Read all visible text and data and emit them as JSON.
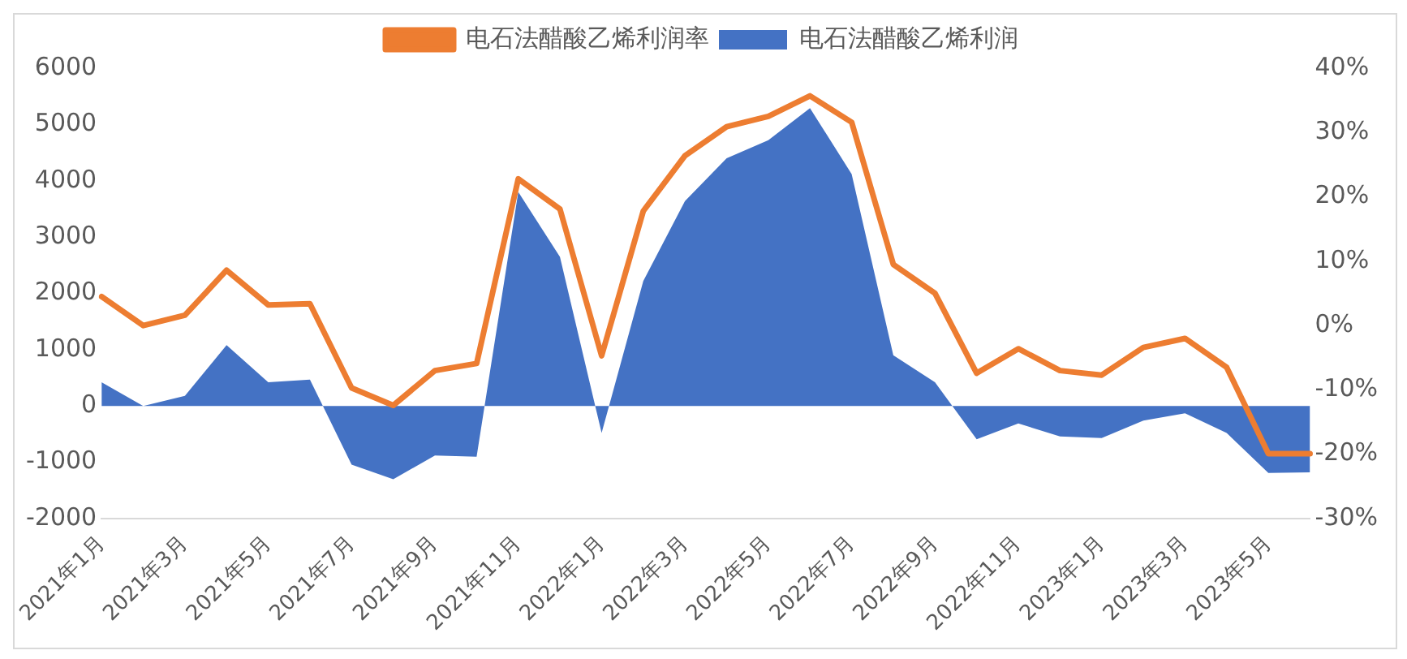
{
  "chart_data": {
    "type": "area",
    "categories": [
      "2021年1月",
      null,
      "2021年3月",
      null,
      "2021年5月",
      null,
      "2021年7月",
      null,
      "2021年9月",
      null,
      "2021年11月",
      null,
      "2022年1月",
      null,
      "2022年3月",
      null,
      "2022年5月",
      null,
      "2022年7月",
      null,
      "2022年9月",
      null,
      "2022年11月",
      null,
      "2023年1月",
      null,
      "2023年3月",
      null,
      "2023年5月",
      null
    ],
    "series": [
      {
        "name": "电石法醋酸乙烯利润",
        "color": "#4472c4",
        "values": [
          420,
          0,
          180,
          1080,
          420,
          470,
          -1040,
          -1300,
          -880,
          -900,
          3800,
          2650,
          -480,
          2220,
          3640,
          4400,
          4720,
          5290,
          4120,
          900,
          420,
          -590,
          -310,
          -540,
          -570,
          -260,
          -130,
          -480,
          -1190,
          -1180
        ]
      },
      {
        "name": "电石法醋酸乙烯利润率",
        "type": "line",
        "axis": "y2",
        "color": "#ed7d31",
        "values": [
          4.5,
          0,
          1.6,
          8.6,
          3.2,
          3.4,
          -9.7,
          -12.4,
          -7.0,
          -5.9,
          22.8,
          18.1,
          -4.7,
          17.8,
          26.4,
          30.9,
          32.5,
          35.7,
          31.6,
          9.5,
          5.0,
          -7.4,
          -3.6,
          -7.0,
          -7.7,
          -3.4,
          -2.0,
          -6.5,
          -19.9,
          -19.9
        ]
      }
    ],
    "ylim": [
      -2000,
      6000
    ],
    "yticks": [
      -2000,
      -1000,
      0,
      1000,
      2000,
      3000,
      4000,
      5000,
      6000
    ],
    "y2lim": [
      -30,
      40
    ],
    "y2ticks": [
      {
        "value": -30,
        "label": "-30%"
      },
      {
        "value": -20,
        "label": "-20%"
      },
      {
        "value": -10,
        "label": "-10%"
      },
      {
        "value": 0,
        "label": "0%"
      },
      {
        "value": 10,
        "label": "10%"
      },
      {
        "value": 20,
        "label": "20%"
      },
      {
        "value": 30,
        "label": "30%"
      },
      {
        "value": 40,
        "label": "40%"
      }
    ],
    "grid": false,
    "legend": "top",
    "marker": "none",
    "line_style": "solid"
  }
}
